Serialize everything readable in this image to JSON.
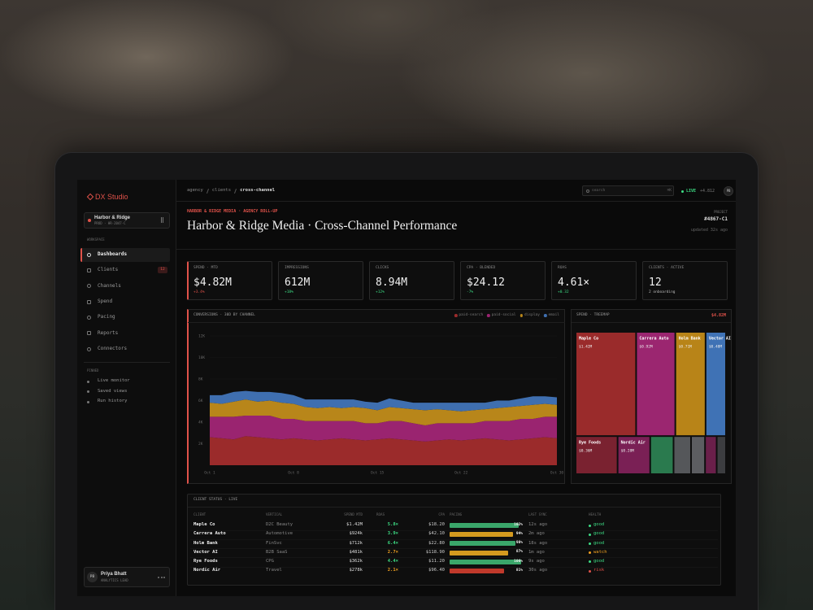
{
  "sidebar": {
    "brand": "DX Studio",
    "workspace": {
      "name": "Harbor & Ridge",
      "meta": "PROD · HR-2047-C"
    },
    "section": "WORKSPACE",
    "nav": [
      {
        "label": "Dashboards",
        "active": true
      },
      {
        "label": "Clients",
        "badge": 12
      },
      {
        "label": "Channels"
      },
      {
        "label": "Spend"
      },
      {
        "label": "Pacing"
      },
      {
        "label": "Reports"
      },
      {
        "label": "Connectors"
      }
    ],
    "pinned_title": "PINNED",
    "pinned": [
      "Live monitor",
      "Saved views",
      "Run history"
    ],
    "user": {
      "initials": "PB",
      "name": "Priya Bhatt",
      "role": "ANALYTICS LEAD"
    }
  },
  "topbar": {
    "breadcrumb": [
      "agency",
      "clients",
      "cross-channel"
    ],
    "search": "search",
    "shortcut": "⌘K",
    "status": "LIVE",
    "status_detail": "+4.812",
    "avatar": "PB"
  },
  "header": {
    "eyebrow": "HARBOR & RIDGE MEDIA · AGENCY ROLL-UP",
    "title": "Harbor & Ridge Media · Cross-Channel Performance",
    "project_label": "PROJECT",
    "project_id": "#4867-C1",
    "updated": "updated 32s ago"
  },
  "kpis": [
    {
      "label": "SPEND · MTD",
      "value": "$4.82M",
      "delta": "+3.4%",
      "delta_color": "#e0524a",
      "accent": true
    },
    {
      "label": "IMPRESSIONS",
      "value": "612M",
      "delta": "+18%",
      "delta_color": "#3ddc84"
    },
    {
      "label": "CLICKS",
      "value": "8.94M",
      "delta": "+12%",
      "delta_color": "#3ddc84"
    },
    {
      "label": "CPA · BLENDED",
      "value": "$24.12",
      "delta": "-7%",
      "delta_color": "#3ddc84"
    },
    {
      "label": "ROAS",
      "value": "4.61×",
      "delta": "+0.32",
      "delta_color": "#3ddc84"
    },
    {
      "label": "CLIENTS · ACTIVE",
      "value": "12",
      "delta": "2 onboarding",
      "delta_color": "#bbbbbb"
    }
  ],
  "conversions_chart": {
    "type": "area",
    "stacked": true,
    "title": "CONVERSIONS · 30D BY CHANNEL",
    "categories": [
      "Oct 1",
      null,
      null,
      null,
      null,
      null,
      null,
      "Oct 8",
      null,
      null,
      null,
      null,
      null,
      null,
      "Oct 15",
      null,
      null,
      null,
      null,
      null,
      null,
      "Oct 22",
      null,
      null,
      null,
      null,
      null,
      null,
      null,
      "Oct 30"
    ],
    "ylim": [
      0,
      12
    ],
    "yticks": [
      {
        "value": 2,
        "label": "2K"
      },
      {
        "value": 4,
        "label": "4K"
      },
      {
        "value": 6,
        "label": "6K"
      },
      {
        "value": 8,
        "label": "8K"
      },
      {
        "value": 10,
        "label": "10K"
      },
      {
        "value": 12,
        "label": "12K"
      }
    ],
    "series": [
      {
        "name": "paid-search",
        "color": "#9b2b2b",
        "values": [
          2.6,
          2.5,
          2.4,
          2.7,
          2.6,
          2.5,
          2.4,
          2.5,
          2.4,
          2.3,
          2.4,
          2.5,
          2.4,
          2.3,
          2.4,
          2.5,
          2.4,
          2.3,
          2.2,
          2.3,
          2.4,
          2.3,
          2.4,
          2.5,
          2.4,
          2.3,
          2.4,
          2.5,
          2.6,
          2.5
        ]
      },
      {
        "name": "paid-social",
        "color": "#9a2470",
        "values": [
          1.9,
          2.0,
          2.1,
          1.9,
          2.0,
          2.1,
          1.9,
          1.8,
          1.7,
          1.8,
          1.7,
          1.6,
          1.7,
          1.6,
          1.5,
          1.6,
          1.7,
          1.6,
          1.5,
          1.6,
          1.5,
          1.6,
          1.5,
          1.6,
          1.7,
          1.8,
          1.9,
          1.8,
          1.9,
          2.0
        ]
      },
      {
        "name": "display",
        "color": "#b8861a",
        "values": [
          1.3,
          1.2,
          1.4,
          1.5,
          1.3,
          1.4,
          1.5,
          1.4,
          1.3,
          1.2,
          1.3,
          1.2,
          1.3,
          1.4,
          1.2,
          1.3,
          1.2,
          1.3,
          1.4,
          1.3,
          1.2,
          1.1,
          1.2,
          1.1,
          1.2,
          1.3,
          1.2,
          1.3,
          1.2,
          1.1
        ]
      },
      {
        "name": "email",
        "color": "#3f6fb0",
        "values": [
          0.7,
          0.8,
          0.9,
          0.8,
          0.9,
          0.8,
          0.9,
          0.8,
          0.7,
          0.8,
          0.7,
          0.8,
          0.7,
          0.6,
          0.7,
          0.8,
          0.7,
          0.6,
          0.7,
          0.6,
          0.7,
          0.8,
          0.7,
          0.6,
          0.7,
          0.6,
          0.7,
          0.8,
          0.7,
          0.7
        ]
      }
    ]
  },
  "spend_treemap": {
    "type": "treemap",
    "title": "SPEND · TREEMAP",
    "total": "$4.82M",
    "categories": [
      "Maple Co",
      "Carrera Auto",
      "Holm Bank",
      "Vector AI",
      "Rye Foods",
      "Nordic Air",
      null,
      null,
      null,
      null,
      null
    ],
    "values": [
      1.42,
      0.92,
      0.71,
      0.48,
      0.36,
      0.28,
      0.2,
      0.15,
      0.12,
      0.1,
      0.08
    ],
    "value_labels": [
      "$1.42M",
      "$0.92M",
      "$0.71M",
      "$0.48M",
      "$0.36M",
      "$0.28M",
      null,
      null,
      null,
      null,
      null
    ],
    "colors": [
      "#9a2b2b",
      "#9b2670",
      "#b88418",
      "#3f72b5",
      "#7a2230",
      "#7a2055",
      "#2a7a4e",
      "#55575a",
      "#5c5d61",
      "#6a1f4a",
      "#3c3d40"
    ]
  },
  "client_table": {
    "title": "CLIENT STATUS · LIVE",
    "columns": [
      "CLIENT",
      "VERTICAL",
      "SPEND MTD",
      "ROAS",
      "CPA",
      "PACING",
      "LAST SYNC",
      "HEALTH"
    ],
    "rows": [
      {
        "client": "Maple Co",
        "vertical": "D2C Beauty",
        "spend": "$1.42M",
        "roas": "5.8×",
        "roas_color": "#3ddc84",
        "cpa": "$18.20",
        "pacing": 102,
        "pacing_label": "102%",
        "bar_color": "#3aa66a",
        "last_sync": "12s ago",
        "health": "good",
        "health_color": "#3ddc84"
      },
      {
        "client": "Carrera Auto",
        "vertical": "Automotive",
        "spend": "$924k",
        "roas": "3.9×",
        "roas_color": "#3ddc84",
        "cpa": "$42.10",
        "pacing": 94,
        "pacing_label": "94%",
        "bar_color": "#d49a1f",
        "last_sync": "2m ago",
        "health": "good",
        "health_color": "#3ddc84"
      },
      {
        "client": "Holm Bank",
        "vertical": "FinSvc",
        "spend": "$712k",
        "roas": "6.4×",
        "roas_color": "#3ddc84",
        "cpa": "$22.80",
        "pacing": 98,
        "pacing_label": "98%",
        "bar_color": "#3aa66a",
        "last_sync": "18s ago",
        "health": "good",
        "health_color": "#3ddc84"
      },
      {
        "client": "Vector AI",
        "vertical": "B2B SaaS",
        "spend": "$481k",
        "roas": "2.7×",
        "roas_color": "#f0a020",
        "cpa": "$118.90",
        "pacing": 87,
        "pacing_label": "87%",
        "bar_color": "#d49a1f",
        "last_sync": "1m ago",
        "health": "watch",
        "health_color": "#f0a020"
      },
      {
        "client": "Rye Foods",
        "vertical": "CPG",
        "spend": "$362k",
        "roas": "4.4×",
        "roas_color": "#3ddc84",
        "cpa": "$11.20",
        "pacing": 106,
        "pacing_label": "106%",
        "bar_color": "#3aa66a",
        "last_sync": "9s ago",
        "health": "good",
        "health_color": "#3ddc84"
      },
      {
        "client": "Nordic Air",
        "vertical": "Travel",
        "spend": "$278k",
        "roas": "2.1×",
        "roas_color": "#f0a020",
        "cpa": "$96.40",
        "pacing": 81,
        "pacing_label": "81%",
        "bar_color": "#c0392b",
        "last_sync": "30s ago",
        "health": "risk",
        "health_color": "#e0524a"
      }
    ]
  }
}
